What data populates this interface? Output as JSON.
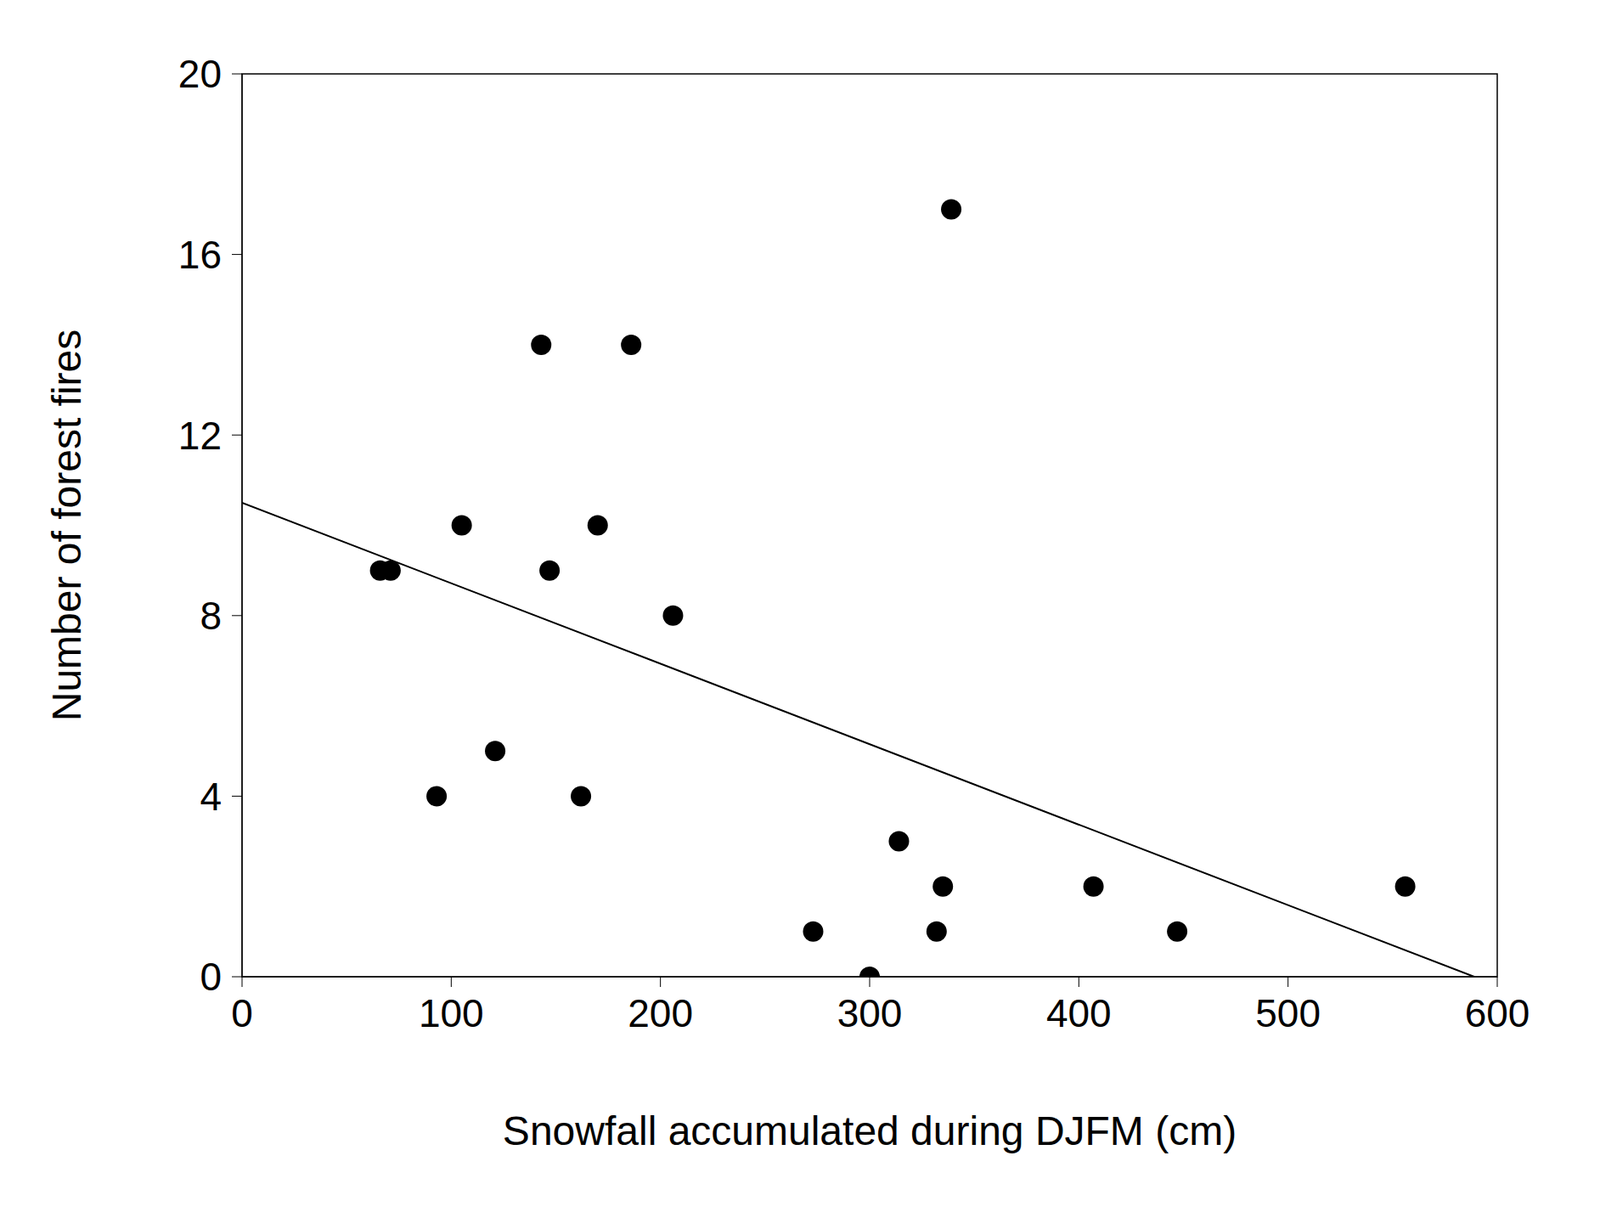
{
  "chart_data": {
    "type": "scatter",
    "x_label": "Snowfall accumulated during DJFM (cm)",
    "y_label": "Number of forest fires",
    "x": [
      66,
      71,
      93,
      105,
      121,
      143,
      147,
      162,
      170,
      186,
      206,
      273,
      300,
      314,
      332,
      335,
      339,
      407,
      447,
      556
    ],
    "values": [
      9,
      9,
      4,
      10,
      5,
      14,
      9,
      4,
      10,
      14,
      8,
      1,
      0,
      3,
      1,
      2,
      17,
      2,
      1,
      2
    ],
    "color": "#000000",
    "marker": "circle",
    "trend_line": {
      "x": [
        0,
        589
      ],
      "y": [
        10.5,
        0
      ],
      "color": "#000000"
    },
    "xlim": [
      0,
      600
    ],
    "ylim": [
      0,
      20
    ],
    "xticks": [
      0,
      100,
      200,
      300,
      400,
      500,
      600
    ],
    "yticks": [
      0,
      4,
      8,
      12,
      16,
      20
    ],
    "grid": false
  }
}
